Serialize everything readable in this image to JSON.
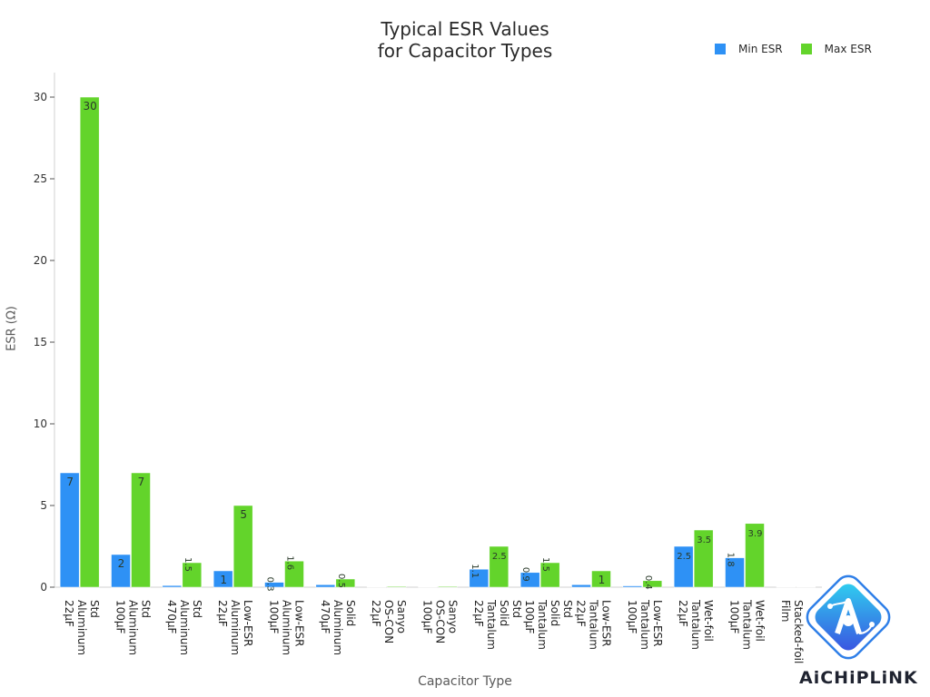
{
  "chart_data": {
    "type": "bar",
    "title_lines": [
      "Typical ESR Values",
      "for Capacitor Types"
    ],
    "xlabel": "Capacitor Type",
    "ylabel": "ESR (Ω)",
    "ylim": [
      0,
      31.5
    ],
    "yticks": [
      0,
      5,
      10,
      15,
      20,
      25,
      30
    ],
    "grid": false,
    "legend_position": "top-right",
    "categories": [
      [
        "22µF",
        "Aluminum",
        "Std"
      ],
      [
        "100µF",
        "Aluminum",
        "Std"
      ],
      [
        "470µF",
        "Aluminum",
        "Std"
      ],
      [
        "22µF",
        "Aluminum",
        "Low-ESR"
      ],
      [
        "100µF",
        "Aluminum",
        "Low-ESR"
      ],
      [
        "470µF",
        "Aluminum",
        "Solid"
      ],
      [
        "22µF",
        "OS-CON",
        "Sanyo"
      ],
      [
        "100µF",
        "OS-CON",
        "Sanyo"
      ],
      [
        "22µF",
        "Tantalum",
        "Solid",
        "Std"
      ],
      [
        "100µF",
        "Tantalum",
        "Solid",
        "Std"
      ],
      [
        "22µF",
        "Tantalum",
        "Low-ESR"
      ],
      [
        "100µF",
        "Tantalum",
        "Low-ESR"
      ],
      [
        "22µF",
        "Tantalum",
        "Wet-foil"
      ],
      [
        "100µF",
        "Tantalum",
        "Wet-foil"
      ],
      [
        "Film",
        "Stacked-foil"
      ]
    ],
    "series": [
      {
        "name": "Min ESR",
        "color": "#2e91f5",
        "values": [
          7,
          2,
          0.1,
          1,
          0.3,
          0.15,
          0.01,
          0.01,
          1.1,
          0.9,
          0.15,
          0.08,
          2.5,
          1.8,
          0.005
        ],
        "labels": [
          "7",
          "2",
          "",
          "1",
          "0.3",
          "",
          "",
          "",
          "1.1",
          "0.9",
          "",
          "",
          "2.5",
          "1.8",
          ""
        ]
      },
      {
        "name": "Max ESR",
        "color": "#63d42b",
        "values": [
          30,
          7,
          1.5,
          5,
          1.6,
          0.5,
          0.05,
          0.05,
          2.5,
          1.5,
          1,
          0.4,
          3.5,
          3.9,
          0.01
        ],
        "labels": [
          "30",
          "7",
          "1.5",
          "5",
          "1.6",
          "0.5",
          "",
          "",
          "2.5",
          "1.5",
          "1",
          "0.4",
          "3.5",
          "3.9",
          ""
        ]
      }
    ]
  },
  "logo": {
    "text": "AiCHiPLiNK",
    "icon": "chip-link-logo-icon"
  }
}
